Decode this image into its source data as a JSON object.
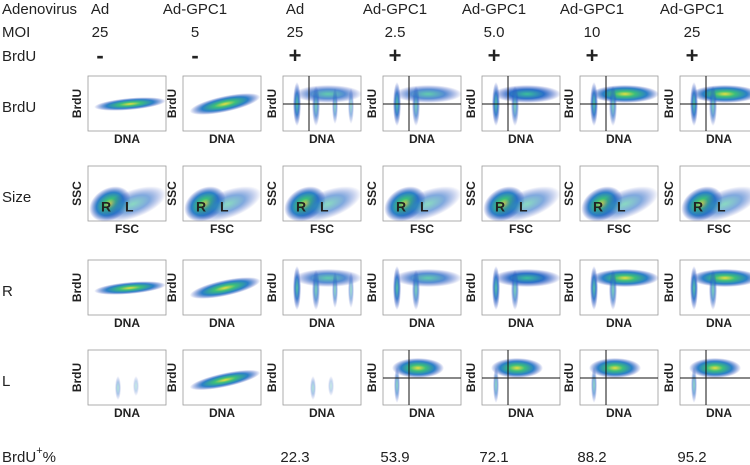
{
  "header": {
    "row_labels": [
      "Adenovirus",
      "MOI",
      "BrdU"
    ]
  },
  "columns": [
    {
      "adenovirus": "Ad",
      "moi": "25",
      "brdu": "-"
    },
    {
      "adenovirus": "Ad-GPC1",
      "moi": "5",
      "brdu": "-"
    },
    {
      "adenovirus": "Ad",
      "moi": "25",
      "brdu": "+"
    },
    {
      "adenovirus": "Ad-GPC1",
      "moi": "2.5",
      "brdu": "+"
    },
    {
      "adenovirus": "Ad-GPC1",
      "moi": "5.0",
      "brdu": "+"
    },
    {
      "adenovirus": "Ad-GPC1",
      "moi": "10",
      "brdu": "+"
    },
    {
      "adenovirus": "Ad-GPC1",
      "moi": "25",
      "brdu": "+"
    }
  ],
  "rows": [
    "BrdU",
    "Size",
    "R",
    "L"
  ],
  "plot_axes": {
    "brdu": "BrdU",
    "dna": "DNA",
    "ssc": "SSC",
    "fsc": "FSC",
    "gate_r": "R",
    "gate_l": "L"
  },
  "footer": {
    "label": "BrdU",
    "superscript": "+",
    "suffix": "%",
    "values": [
      null,
      null,
      22.3,
      53.9,
      72.1,
      88.2,
      95.2
    ]
  }
}
